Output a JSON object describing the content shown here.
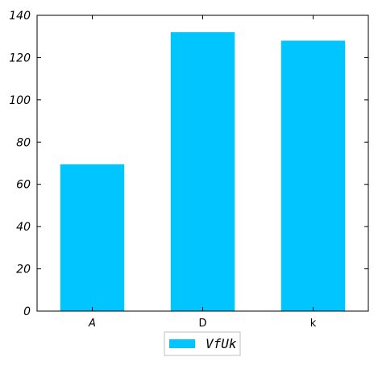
{
  "chart_data": {
    "type": "bar",
    "categories": [
      "A",
      "D",
      "k"
    ],
    "series": [
      {
        "name": "VfUk",
        "values": [
          69.5,
          132,
          128
        ]
      }
    ],
    "ylim": [
      0,
      140
    ],
    "yticks": [
      0,
      20,
      40,
      60,
      80,
      100,
      120,
      140
    ],
    "grid": false,
    "legend": "bottom-center",
    "colors": {
      "bar": "#00C5FF"
    }
  }
}
